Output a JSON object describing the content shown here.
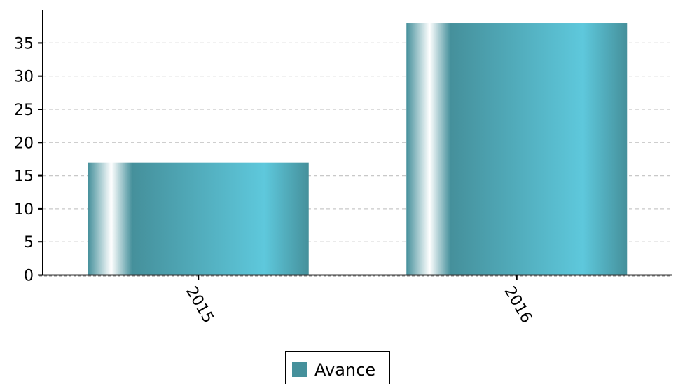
{
  "chart_data": {
    "type": "bar",
    "categories": [
      "2015",
      "2016"
    ],
    "series": [
      {
        "name": "Avance",
        "values": [
          17,
          38
        ]
      }
    ],
    "ylim": [
      0,
      40
    ],
    "yticks": [
      0,
      5,
      10,
      15,
      20,
      25,
      30,
      35
    ],
    "grid": true,
    "legend_position": "bottom",
    "colors": {
      "bar_dark": "#45909b",
      "bar_light": "#5ec8dc",
      "highlight": "#ffffff",
      "legend_swatch": "#45909b",
      "grid": "#c8c8c8"
    }
  }
}
